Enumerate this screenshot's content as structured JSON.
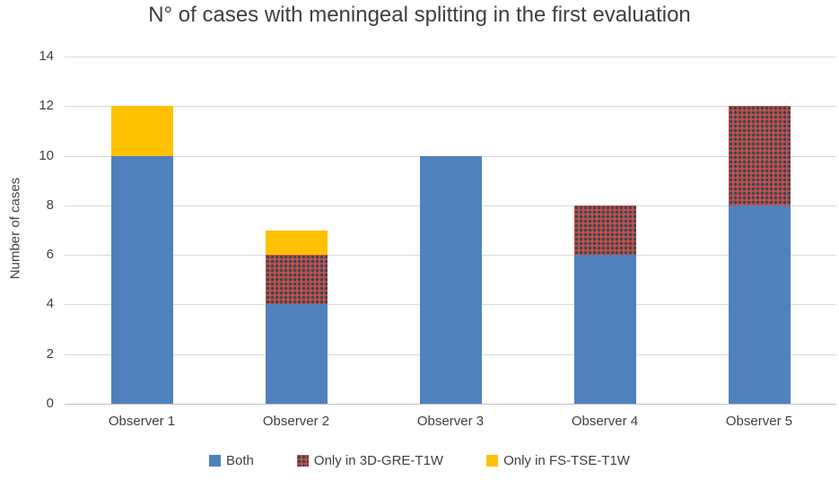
{
  "title": "N° of cases with meningeal splitting in the first evaluation",
  "y_axis": {
    "label": "Number of cases",
    "ticks": [
      "0",
      "2",
      "4",
      "6",
      "8",
      "10",
      "12",
      "14"
    ],
    "tick_values": [
      0,
      2,
      4,
      6,
      8,
      10,
      12,
      14
    ]
  },
  "legend": [
    {
      "label": "Both",
      "swatch": "both"
    },
    {
      "label": "Only in 3D-GRE-T1W",
      "swatch": "gre"
    },
    {
      "label": "Only in FS-TSE-T1W",
      "swatch": "tse"
    }
  ],
  "colors": {
    "both": "#4F81BD",
    "gre_bg": "#C0504D",
    "gre_dot": "#3F4650",
    "tse": "#FFC000",
    "gridline": "#D9D9D9",
    "axis_line": "#BFBFBF",
    "text": "#3F3F3F"
  },
  "chart_data": {
    "type": "bar",
    "stacked": true,
    "categories": [
      "Observer 1",
      "Observer 2",
      "Observer 3",
      "Observer 4",
      "Observer 5"
    ],
    "series": [
      {
        "name": "Both",
        "key": "both",
        "values": [
          10,
          4,
          10,
          6,
          8
        ]
      },
      {
        "name": "Only in 3D-GRE-T1W",
        "key": "gre",
        "values": [
          0,
          2,
          0,
          2,
          4
        ]
      },
      {
        "name": "Only in FS-TSE-T1W",
        "key": "tse",
        "values": [
          2,
          1,
          0,
          0,
          0
        ]
      }
    ],
    "title": "N° of cases with meningeal splitting in the first evaluation",
    "xlabel": "",
    "ylabel": "Number of cases",
    "ylim": [
      0,
      14
    ],
    "grid": true,
    "legend_position": "bottom"
  }
}
